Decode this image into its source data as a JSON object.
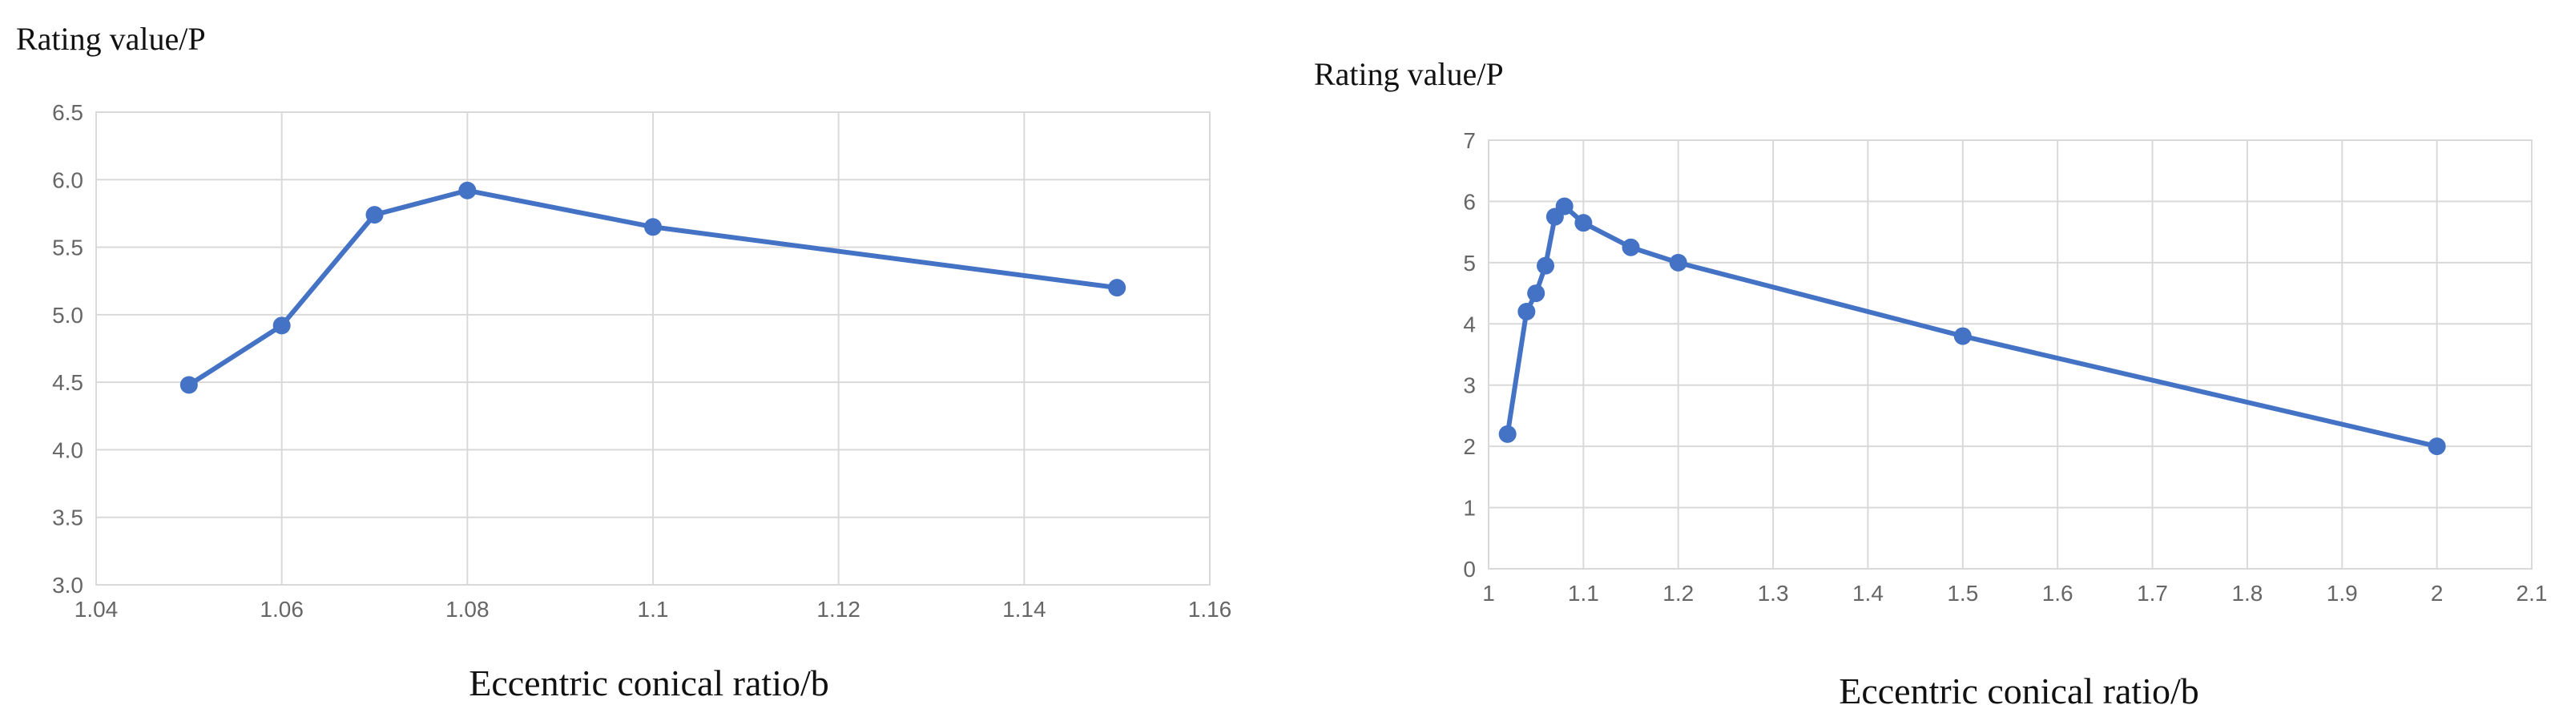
{
  "chart_data": [
    {
      "type": "line",
      "title": "Rating value/P",
      "xlabel": "Eccentric conical ratio/b",
      "ylabel": "Rating value/P",
      "xlim": [
        1.04,
        1.16
      ],
      "ylim": [
        3.0,
        6.5
      ],
      "xticks": [
        "1.04",
        "1.06",
        "1.08",
        "1.1",
        "1.12",
        "1.14",
        "1.16"
      ],
      "yticks": [
        "3.0",
        "3.5",
        "4.0",
        "4.5",
        "5.0",
        "5.5",
        "6.0",
        "6.5"
      ],
      "grid": true,
      "series": [
        {
          "color": "#4472c4",
          "x": [
            1.05,
            1.06,
            1.07,
            1.08,
            1.1,
            1.15
          ],
          "y": [
            4.48,
            4.92,
            5.74,
            5.92,
            5.65,
            5.2
          ]
        }
      ]
    },
    {
      "type": "line",
      "title": "Rating value/P",
      "xlabel": "Eccentric conical ratio/b",
      "ylabel": "Rating value/P",
      "xlim": [
        1,
        2.1
      ],
      "ylim": [
        0,
        7
      ],
      "xticks": [
        "1",
        "1.1",
        "1.2",
        "1.3",
        "1.4",
        "1.5",
        "1.6",
        "1.7",
        "1.8",
        "1.9",
        "2",
        "2.1"
      ],
      "yticks": [
        "0",
        "1",
        "2",
        "3",
        "4",
        "5",
        "6",
        "7"
      ],
      "grid": true,
      "series": [
        {
          "color": "#4472c4",
          "x": [
            1.02,
            1.04,
            1.05,
            1.06,
            1.07,
            1.08,
            1.1,
            1.15,
            1.2,
            1.5,
            2.0
          ],
          "y": [
            2.2,
            4.2,
            4.5,
            4.95,
            5.75,
            5.92,
            5.65,
            5.25,
            5.0,
            3.8,
            2.0
          ]
        }
      ]
    }
  ]
}
